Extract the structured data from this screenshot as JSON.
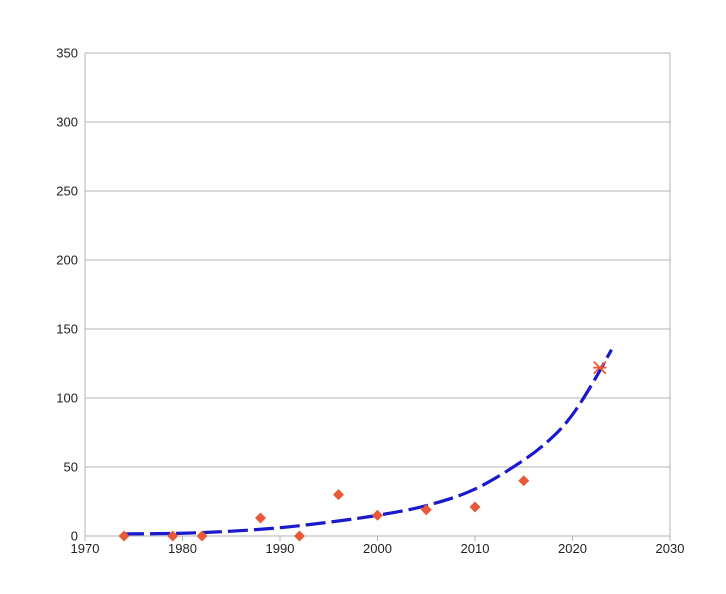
{
  "chart_data": {
    "type": "scatter",
    "title": "",
    "xlabel": "",
    "ylabel": "",
    "xlim": [
      1970,
      2030
    ],
    "ylim": [
      0,
      350
    ],
    "x_ticks": [
      1970,
      1980,
      1990,
      2000,
      2010,
      2020,
      2030
    ],
    "y_ticks": [
      0,
      50,
      100,
      150,
      200,
      250,
      300,
      350
    ],
    "x_tick_labels": [
      "1970",
      "1980",
      "1990",
      "2000",
      "2010",
      "2020",
      "2030"
    ],
    "y_tick_labels": [
      "0",
      "50",
      "100",
      "150",
      "200",
      "250",
      "300",
      "350"
    ],
    "grid": "horizontal",
    "legend": "none",
    "series": [
      {
        "marker": "diamond",
        "color": "#e8593a",
        "points": [
          {
            "x": 1974,
            "y": 0
          },
          {
            "x": 1979,
            "y": 0
          },
          {
            "x": 1982,
            "y": 0
          },
          {
            "x": 1988,
            "y": 13
          },
          {
            "x": 1992,
            "y": 0
          },
          {
            "x": 1996,
            "y": 30
          },
          {
            "x": 2000,
            "y": 15
          },
          {
            "x": 2005,
            "y": 19
          },
          {
            "x": 2010,
            "y": 21
          },
          {
            "x": 2015,
            "y": 40
          }
        ]
      },
      {
        "marker": "asterisk",
        "color": "#e8593a",
        "points": [
          {
            "x": 2022.8,
            "y": 122
          }
        ]
      }
    ],
    "trendline": {
      "style": "dashed",
      "color": "#1a1acc",
      "points": [
        {
          "x": 1974,
          "y": 1.5
        },
        {
          "x": 1980,
          "y": 2
        },
        {
          "x": 1985,
          "y": 3.5
        },
        {
          "x": 1990,
          "y": 6
        },
        {
          "x": 1995,
          "y": 10
        },
        {
          "x": 2000,
          "y": 15
        },
        {
          "x": 2005,
          "y": 22
        },
        {
          "x": 2010,
          "y": 34
        },
        {
          "x": 2015,
          "y": 55
        },
        {
          "x": 2018,
          "y": 72
        },
        {
          "x": 2020,
          "y": 88
        },
        {
          "x": 2022,
          "y": 110
        },
        {
          "x": 2024,
          "y": 135
        }
      ]
    }
  }
}
